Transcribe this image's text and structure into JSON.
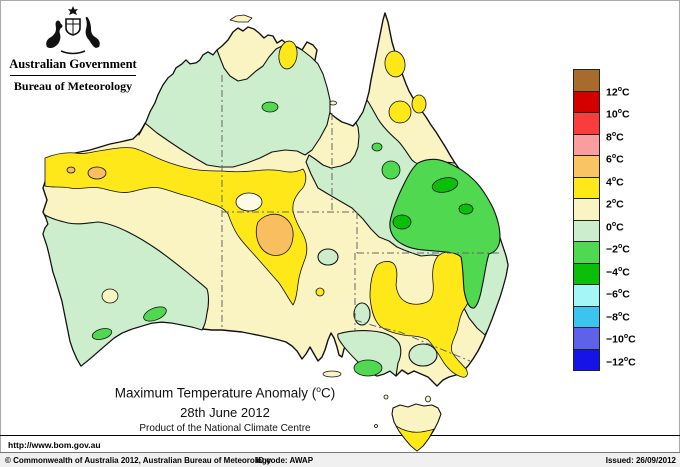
{
  "header": {
    "gov_title": "Australian Government",
    "bureau": "Bureau of Meteorology"
  },
  "titles": {
    "main_prefix": "Maximum Temperature Anomaly (",
    "deg_symbol": "o",
    "main_suffix": "C)",
    "date": "28th June 2012",
    "product": "Product of the National Climate Centre"
  },
  "legend": {
    "deg_symbol": "o",
    "unit": "C",
    "labels": [
      "12",
      "10",
      "8",
      "6",
      "4",
      "2",
      "0",
      "−2",
      "−4",
      "−6",
      "−8",
      "−10",
      "−12"
    ],
    "colors": [
      "#A86A2D",
      "#D40000",
      "#F93C3C",
      "#F99E9E",
      "#F9C464",
      "#FFE81A",
      "#FAF4C3",
      "#CDEECD",
      "#50D850",
      "#0ABE0A",
      "#A5F6F6",
      "#3AC4EF",
      "#5E62E8",
      "#1414E6"
    ]
  },
  "footer": {
    "url": "http://www.bom.gov.au",
    "copyright": "© Commonwealth of Australia 2012, Australian Bureau of Meteorology",
    "id_code": "ID code: AWAP",
    "issued": "Issued: 26/09/2012"
  },
  "map": {
    "description": "Contour map of Australia showing maximum temperature anomaly (degC) for 28th June 2012; anomalies range from about +6 in central/western Australia to about -6 in central Queensland.",
    "colors": {
      "cream": "#FAF4C3",
      "pale_green": "#CDEECD",
      "yellow": "#FFE81A",
      "orange": "#F9BE5F",
      "green": "#50D850",
      "dark_green": "#0ABE0A",
      "pale_hole": "#FDFBE6",
      "outline": "#111111",
      "border_dash": "#666666",
      "sea": "#FFFFFF"
    }
  }
}
